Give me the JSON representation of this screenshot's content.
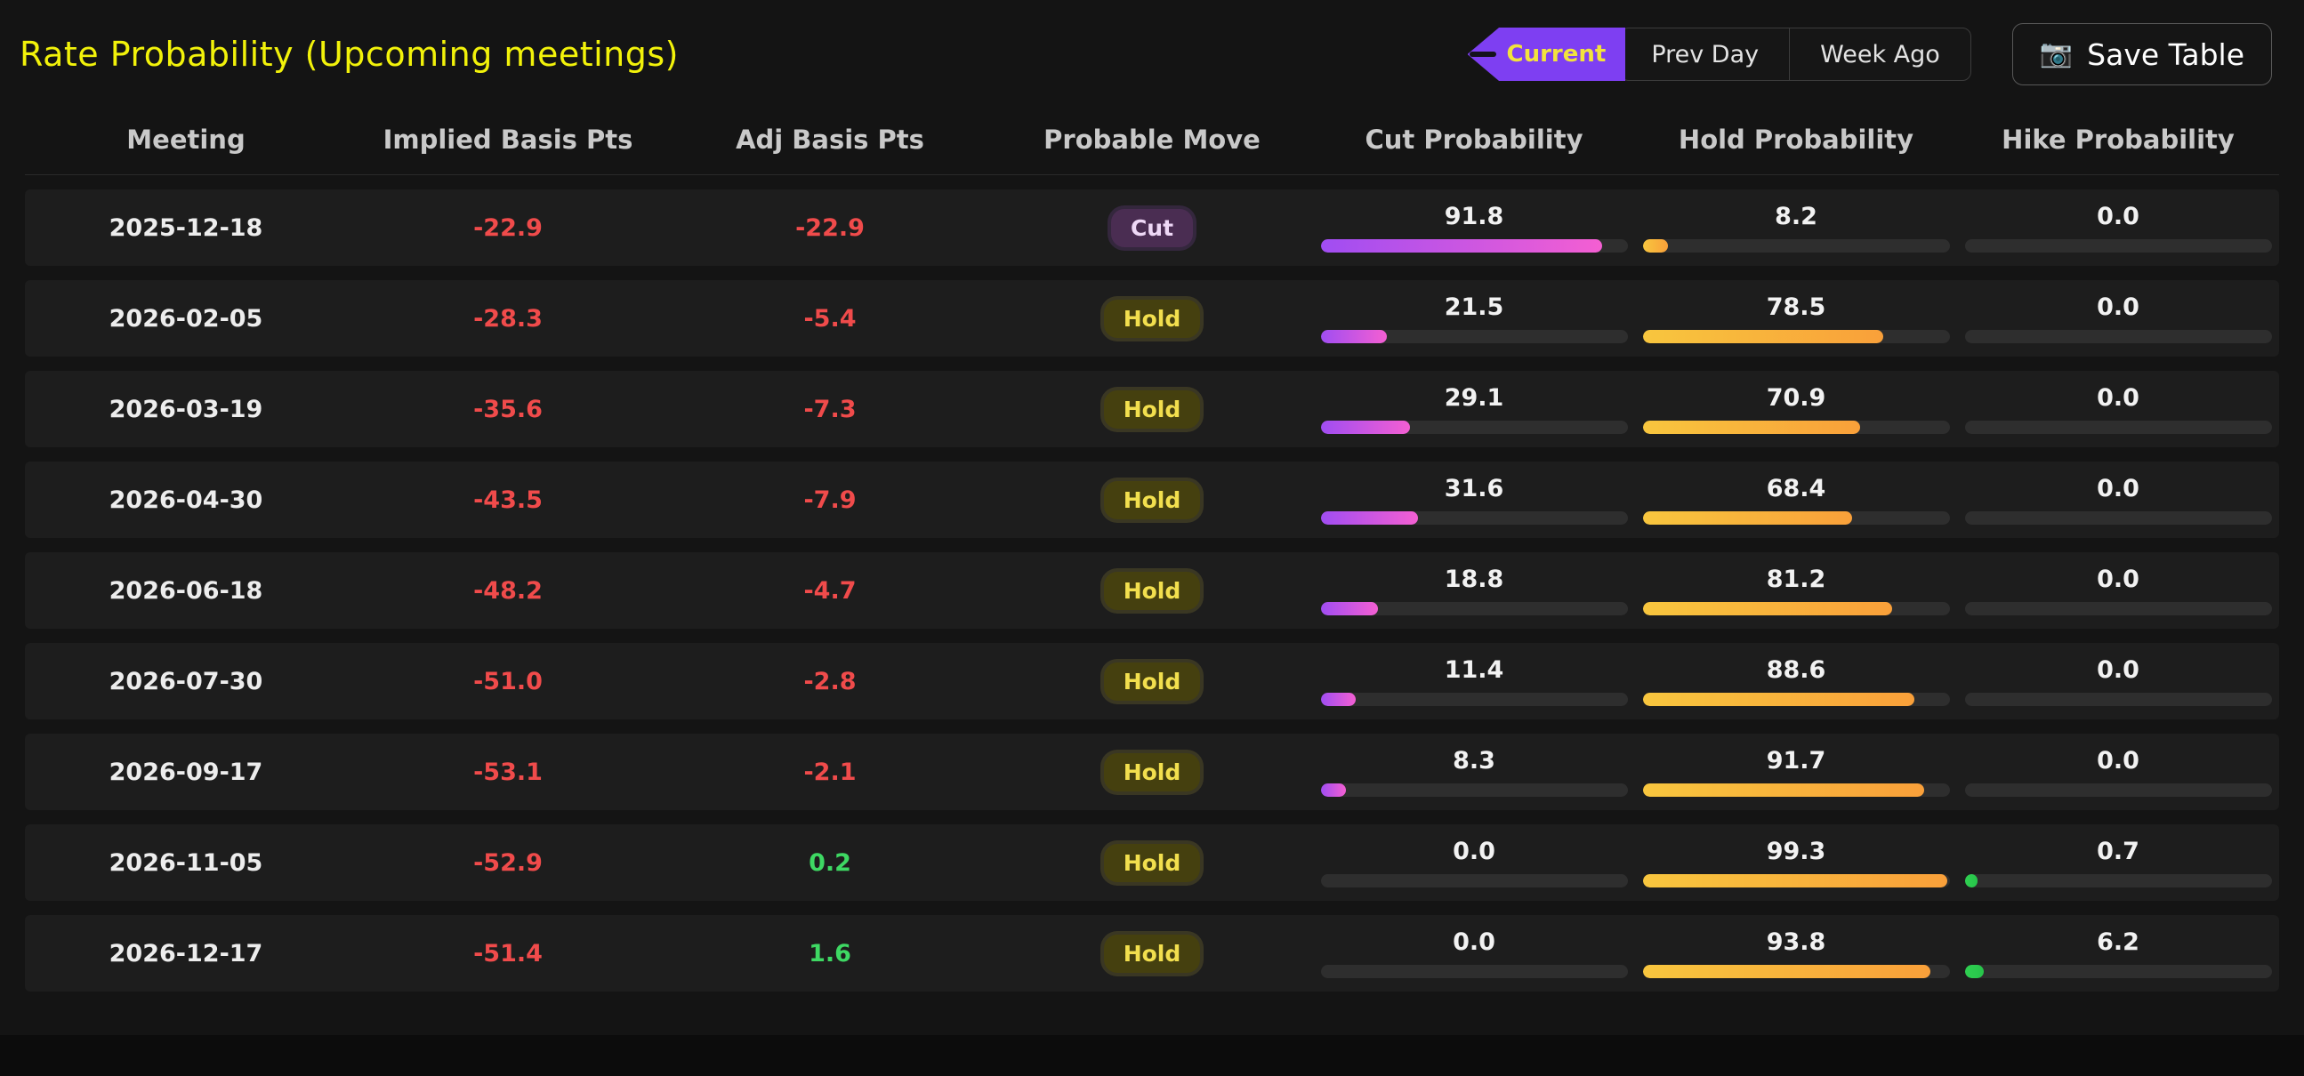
{
  "page": {
    "title": "Rate Probability (Upcoming meetings)"
  },
  "toolbar": {
    "current_label": "Current",
    "prev_day_label": "Prev Day",
    "week_ago_label": "Week Ago",
    "save_label": "Save Table",
    "camera_icon": "📷"
  },
  "colors": {
    "title_yellow": "#f2f20a",
    "negative_red": "#f04b4b",
    "positive_green": "#3ed863",
    "cut_bar_start": "#a04df2",
    "cut_bar_end": "#f45fd2",
    "hold_bar_start": "#f8c63e",
    "hold_bar_end": "#f9a03a",
    "hike_bar": "#2fd051",
    "current_tab_purple": "#7e3ff2"
  },
  "table": {
    "columns": [
      "Meeting",
      "Implied Basis Pts",
      "Adj Basis Pts",
      "Probable Move",
      "Cut Probability",
      "Hold Probability",
      "Hike Probability"
    ],
    "rows": [
      {
        "meeting": "2025-12-18",
        "implied": "-22.9",
        "adj": "-22.9",
        "move": "Cut",
        "cut": "91.8",
        "hold": "8.2",
        "hike": "0.0"
      },
      {
        "meeting": "2026-02-05",
        "implied": "-28.3",
        "adj": "-5.4",
        "move": "Hold",
        "cut": "21.5",
        "hold": "78.5",
        "hike": "0.0"
      },
      {
        "meeting": "2026-03-19",
        "implied": "-35.6",
        "adj": "-7.3",
        "move": "Hold",
        "cut": "29.1",
        "hold": "70.9",
        "hike": "0.0"
      },
      {
        "meeting": "2026-04-30",
        "implied": "-43.5",
        "adj": "-7.9",
        "move": "Hold",
        "cut": "31.6",
        "hold": "68.4",
        "hike": "0.0"
      },
      {
        "meeting": "2026-06-18",
        "implied": "-48.2",
        "adj": "-4.7",
        "move": "Hold",
        "cut": "18.8",
        "hold": "81.2",
        "hike": "0.0"
      },
      {
        "meeting": "2026-07-30",
        "implied": "-51.0",
        "adj": "-2.8",
        "move": "Hold",
        "cut": "11.4",
        "hold": "88.6",
        "hike": "0.0"
      },
      {
        "meeting": "2026-09-17",
        "implied": "-53.1",
        "adj": "-2.1",
        "move": "Hold",
        "cut": "8.3",
        "hold": "91.7",
        "hike": "0.0"
      },
      {
        "meeting": "2026-11-05",
        "implied": "-52.9",
        "adj": "0.2",
        "move": "Hold",
        "cut": "0.0",
        "hold": "99.3",
        "hike": "0.7"
      },
      {
        "meeting": "2026-12-17",
        "implied": "-51.4",
        "adj": "1.6",
        "move": "Hold",
        "cut": "0.0",
        "hold": "93.8",
        "hike": "6.2"
      }
    ]
  }
}
